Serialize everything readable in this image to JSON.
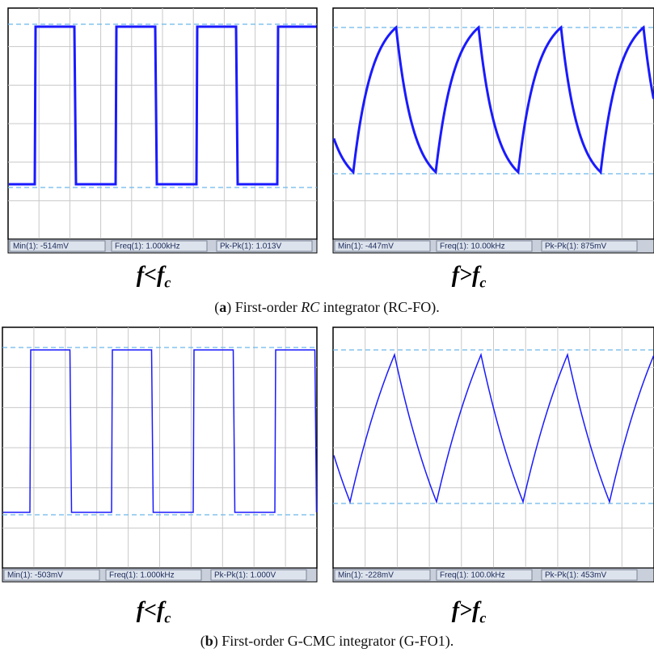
{
  "rows": [
    {
      "panels": [
        {
          "status": [
            "Min(1): -514mV",
            "Freq(1): 1.000kHz",
            "Pk-Pk(1): 1.013V"
          ],
          "condition": {
            "var": "f",
            "op": "<",
            "ref": "f",
            "sub": "c"
          }
        },
        {
          "status": [
            "Min(1): -447mV",
            "Freq(1): 10.00kHz",
            "Pk-Pk(1): 875mV"
          ],
          "condition": {
            "var": "f",
            "op": ">",
            "ref": "f",
            "sub": "c"
          }
        }
      ],
      "caption": [
        {
          "text": "(",
          "style": "normal"
        },
        {
          "text": "a",
          "style": "bold"
        },
        {
          "text": ") First-order ",
          "style": "normal"
        },
        {
          "text": "RC",
          "style": "italic"
        },
        {
          "text": " integrator (RC-FO).",
          "style": "normal"
        }
      ]
    },
    {
      "panels": [
        {
          "status": [
            "Min(1): -503mV",
            "Freq(1): 1.000kHz",
            "Pk-Pk(1): 1.000V"
          ],
          "condition": {
            "var": "f",
            "op": "<",
            "ref": "f",
            "sub": "c"
          }
        },
        {
          "status": [
            "Min(1): -228mV",
            "Freq(1): 100.0kHz",
            "Pk-Pk(1): 453mV"
          ],
          "condition": {
            "var": "f",
            "op": ">",
            "ref": "f",
            "sub": "c"
          }
        }
      ],
      "caption": [
        {
          "text": "(",
          "style": "normal"
        },
        {
          "text": "b",
          "style": "bold"
        },
        {
          "text": ") First-order G-CMC integrator (G-FO1).",
          "style": "normal"
        }
      ]
    }
  ]
}
